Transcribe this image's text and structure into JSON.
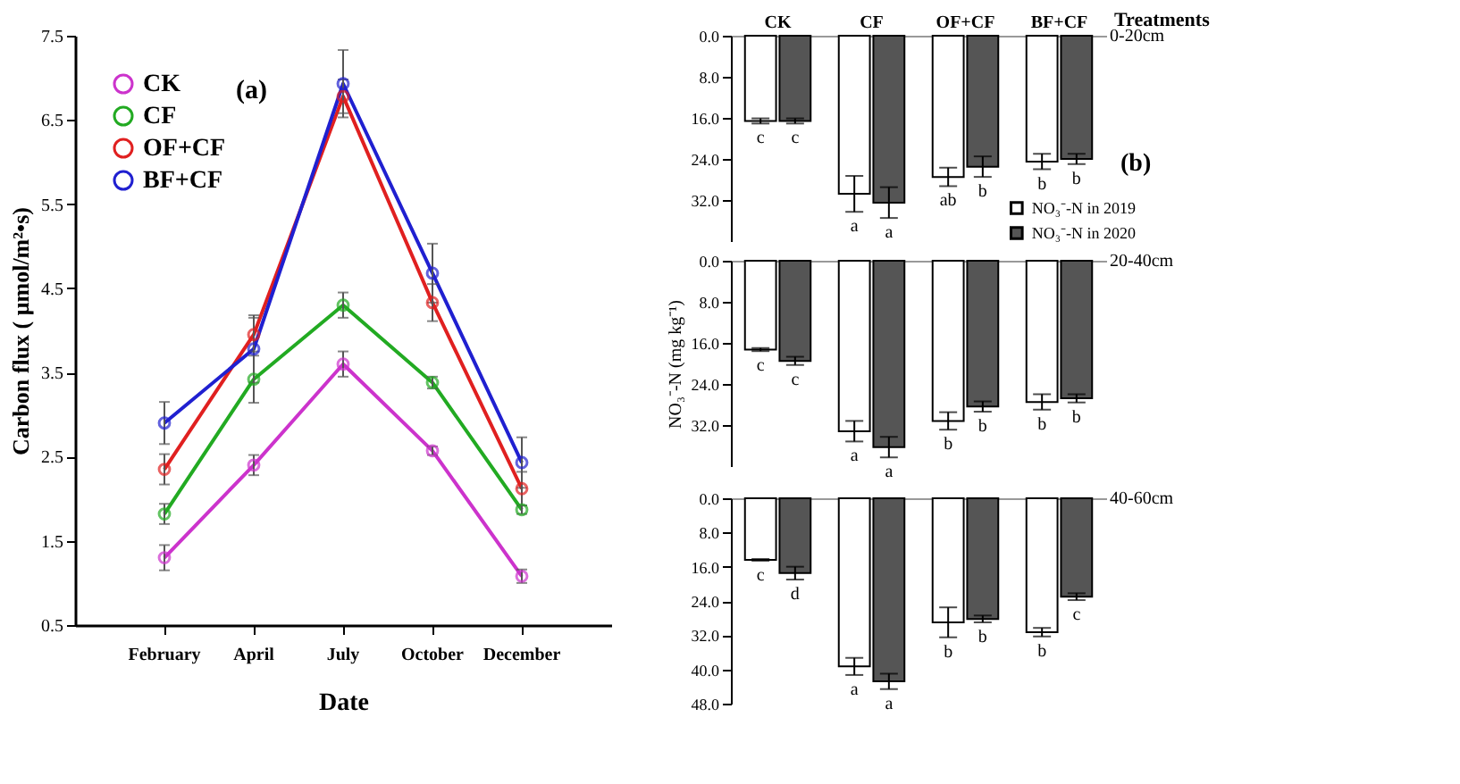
{
  "chart_data": [
    {
      "type": "line",
      "xlabel": "Date",
      "ylabel": "Carbon flux ( μmol/m²•s)",
      "categories": [
        "February",
        "April",
        "July",
        "October",
        "December"
      ],
      "ylim": [
        0.5,
        7.5
      ],
      "yticks": [
        0.5,
        1.5,
        2.5,
        3.5,
        4.5,
        5.5,
        6.5,
        7.5
      ],
      "legend": "top left",
      "marker": "circle",
      "grid": false,
      "annotations": [
        "(a)"
      ],
      "series": [
        {
          "name": "CK",
          "color": "#cc33cc",
          "values": [
            1.3,
            2.4,
            3.6,
            2.57,
            1.08
          ],
          "errors": [
            0.15,
            0.12,
            0.15,
            0.05,
            0.08
          ]
        },
        {
          "name": "CF",
          "color": "#22aa22",
          "values": [
            1.82,
            3.42,
            4.3,
            3.38,
            1.87
          ],
          "errors": [
            0.12,
            0.28,
            0.15,
            0.07,
            0.05
          ]
        },
        {
          "name": "OF+CF",
          "color": "#e02020",
          "values": [
            2.35,
            3.95,
            6.78,
            4.33,
            2.12
          ],
          "errors": [
            0.18,
            0.2,
            0.2,
            0.22,
            0.2
          ]
        },
        {
          "name": "BF+CF",
          "color": "#2020d0",
          "values": [
            2.9,
            3.78,
            6.93,
            4.68,
            2.43
          ],
          "errors": [
            0.25,
            0.4,
            0.4,
            0.35,
            0.3
          ]
        }
      ]
    },
    {
      "type": "bar",
      "xlabel": "Treatments",
      "categories": [
        "CK",
        "CF",
        "OF+CF",
        "BF+CF"
      ],
      "ylim": [
        40,
        0
      ],
      "yticks": [
        {
          "value": 0,
          "label": "0.0"
        },
        {
          "value": 8,
          "label": "8.0"
        },
        {
          "value": 16,
          "label": "16.0"
        },
        {
          "value": 24,
          "label": "24.0"
        },
        {
          "value": 32,
          "label": "32.0"
        }
      ],
      "legend": "bottom right",
      "annotations": [
        "0-20cm",
        "(b)"
      ],
      "series": [
        {
          "name": "NO₃⁻-N in 2019",
          "color": "#ffffff",
          "values": [
            16.6,
            30.8,
            27.5,
            24.5
          ],
          "errors": [
            0.5,
            3.5,
            1.8,
            1.5
          ],
          "value_labels": [
            "c",
            "a",
            "ab",
            "b"
          ]
        },
        {
          "name": "NO₃⁻-N in 2020",
          "color": "#555555",
          "values": [
            16.6,
            32.5,
            25.5,
            24
          ],
          "errors": [
            0.5,
            3,
            2,
            1
          ],
          "value_labels": [
            "c",
            "a",
            "b",
            "b"
          ]
        }
      ]
    },
    {
      "type": "bar",
      "ylabel": "NO₃⁻-N (mg kg⁻¹)",
      "tick_labels": "y",
      "ylim": [
        40,
        0
      ],
      "yticks": [
        {
          "value": 0,
          "label": "0.0"
        },
        {
          "value": 8,
          "label": "8.0"
        },
        {
          "value": 16,
          "label": "16.0"
        },
        {
          "value": 24,
          "label": "24.0"
        },
        {
          "value": 32,
          "label": "32.0"
        }
      ],
      "annotations": [
        "20-40cm"
      ],
      "series": [
        {
          "color": "#ffffff",
          "values": [
            17.3,
            33.2,
            31.2,
            27.5
          ],
          "errors": [
            0.3,
            2,
            1.7,
            1.5
          ],
          "value_labels": [
            "c",
            "a",
            "b",
            "b"
          ]
        },
        {
          "color": "#555555",
          "values": [
            19.5,
            36.3,
            28.4,
            26.8
          ],
          "errors": [
            0.8,
            2,
            1,
            0.8
          ],
          "value_labels": [
            "c",
            "a",
            "b",
            "b"
          ]
        }
      ]
    },
    {
      "type": "bar",
      "tick_labels": "y",
      "ylim": [
        48,
        0
      ],
      "yticks": [
        {
          "value": 0,
          "label": "0.0"
        },
        {
          "value": 8,
          "label": "8.0"
        },
        {
          "value": 16,
          "label": "16.0"
        },
        {
          "value": 24,
          "label": "24.0"
        },
        {
          "value": 32,
          "label": "32.0"
        },
        {
          "value": 40,
          "label": "40.0"
        },
        {
          "value": 48,
          "label": "48.0"
        }
      ],
      "annotations": [
        "40-60cm"
      ],
      "series": [
        {
          "color": "#ffffff",
          "values": [
            14.4,
            39.3,
            29,
            31.3
          ],
          "errors": [
            0.2,
            2,
            3.5,
            1
          ],
          "value_labels": [
            "c",
            "a",
            "b",
            "b"
          ]
        },
        {
          "color": "#555555",
          "values": [
            17.5,
            42.8,
            28.2,
            23
          ],
          "errors": [
            1.5,
            1.8,
            0.8,
            0.8
          ],
          "value_labels": [
            "d",
            "a",
            "b",
            "c"
          ]
        }
      ]
    }
  ]
}
